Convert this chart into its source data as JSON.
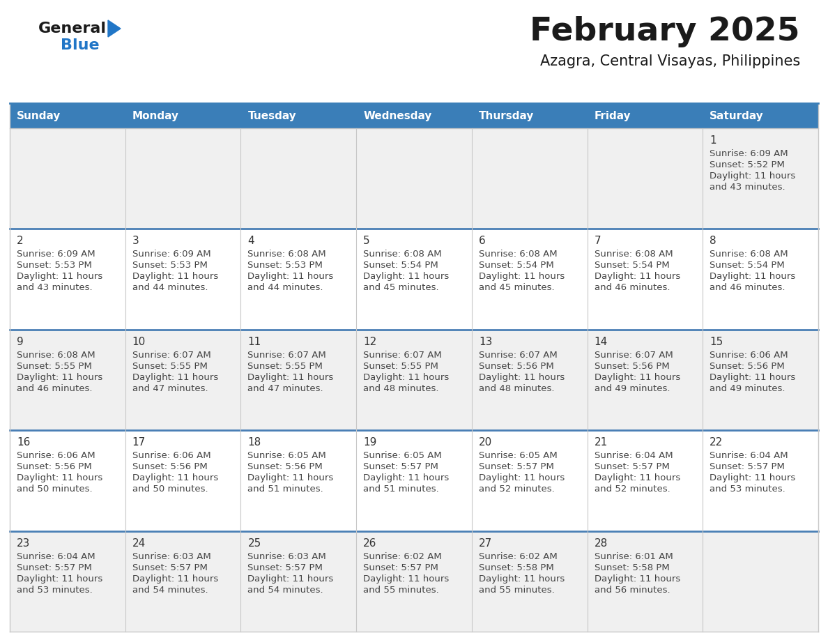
{
  "title": "February 2025",
  "subtitle": "Azagra, Central Visayas, Philippines",
  "days_of_week": [
    "Sunday",
    "Monday",
    "Tuesday",
    "Wednesday",
    "Thursday",
    "Friday",
    "Saturday"
  ],
  "header_bg": "#3a7eb8",
  "header_text": "#ffffff",
  "row_bg_light": "#f0f0f0",
  "row_bg_white": "#ffffff",
  "row_divider_color": "#4a7fb5",
  "col_divider_color": "#c8c8c8",
  "outer_border_color": "#c8c8c8",
  "day_num_color": "#333333",
  "info_text_color": "#444444",
  "title_color": "#1a1a1a",
  "subtitle_color": "#1a1a1a",
  "logo_general_color": "#1a1a1a",
  "logo_blue_color": "#2176c7",
  "calendar_data": [
    [
      null,
      null,
      null,
      null,
      null,
      null,
      {
        "day": 1,
        "sunrise": "6:09 AM",
        "sunset": "5:52 PM",
        "daylight": "11 hours and 43 minutes."
      }
    ],
    [
      {
        "day": 2,
        "sunrise": "6:09 AM",
        "sunset": "5:53 PM",
        "daylight": "11 hours and 43 minutes."
      },
      {
        "day": 3,
        "sunrise": "6:09 AM",
        "sunset": "5:53 PM",
        "daylight": "11 hours and 44 minutes."
      },
      {
        "day": 4,
        "sunrise": "6:08 AM",
        "sunset": "5:53 PM",
        "daylight": "11 hours and 44 minutes."
      },
      {
        "day": 5,
        "sunrise": "6:08 AM",
        "sunset": "5:54 PM",
        "daylight": "11 hours and 45 minutes."
      },
      {
        "day": 6,
        "sunrise": "6:08 AM",
        "sunset": "5:54 PM",
        "daylight": "11 hours and 45 minutes."
      },
      {
        "day": 7,
        "sunrise": "6:08 AM",
        "sunset": "5:54 PM",
        "daylight": "11 hours and 46 minutes."
      },
      {
        "day": 8,
        "sunrise": "6:08 AM",
        "sunset": "5:54 PM",
        "daylight": "11 hours and 46 minutes."
      }
    ],
    [
      {
        "day": 9,
        "sunrise": "6:08 AM",
        "sunset": "5:55 PM",
        "daylight": "11 hours and 46 minutes."
      },
      {
        "day": 10,
        "sunrise": "6:07 AM",
        "sunset": "5:55 PM",
        "daylight": "11 hours and 47 minutes."
      },
      {
        "day": 11,
        "sunrise": "6:07 AM",
        "sunset": "5:55 PM",
        "daylight": "11 hours and 47 minutes."
      },
      {
        "day": 12,
        "sunrise": "6:07 AM",
        "sunset": "5:55 PM",
        "daylight": "11 hours and 48 minutes."
      },
      {
        "day": 13,
        "sunrise": "6:07 AM",
        "sunset": "5:56 PM",
        "daylight": "11 hours and 48 minutes."
      },
      {
        "day": 14,
        "sunrise": "6:07 AM",
        "sunset": "5:56 PM",
        "daylight": "11 hours and 49 minutes."
      },
      {
        "day": 15,
        "sunrise": "6:06 AM",
        "sunset": "5:56 PM",
        "daylight": "11 hours and 49 minutes."
      }
    ],
    [
      {
        "day": 16,
        "sunrise": "6:06 AM",
        "sunset": "5:56 PM",
        "daylight": "11 hours and 50 minutes."
      },
      {
        "day": 17,
        "sunrise": "6:06 AM",
        "sunset": "5:56 PM",
        "daylight": "11 hours and 50 minutes."
      },
      {
        "day": 18,
        "sunrise": "6:05 AM",
        "sunset": "5:56 PM",
        "daylight": "11 hours and 51 minutes."
      },
      {
        "day": 19,
        "sunrise": "6:05 AM",
        "sunset": "5:57 PM",
        "daylight": "11 hours and 51 minutes."
      },
      {
        "day": 20,
        "sunrise": "6:05 AM",
        "sunset": "5:57 PM",
        "daylight": "11 hours and 52 minutes."
      },
      {
        "day": 21,
        "sunrise": "6:04 AM",
        "sunset": "5:57 PM",
        "daylight": "11 hours and 52 minutes."
      },
      {
        "day": 22,
        "sunrise": "6:04 AM",
        "sunset": "5:57 PM",
        "daylight": "11 hours and 53 minutes."
      }
    ],
    [
      {
        "day": 23,
        "sunrise": "6:04 AM",
        "sunset": "5:57 PM",
        "daylight": "11 hours and 53 minutes."
      },
      {
        "day": 24,
        "sunrise": "6:03 AM",
        "sunset": "5:57 PM",
        "daylight": "11 hours and 54 minutes."
      },
      {
        "day": 25,
        "sunrise": "6:03 AM",
        "sunset": "5:57 PM",
        "daylight": "11 hours and 54 minutes."
      },
      {
        "day": 26,
        "sunrise": "6:02 AM",
        "sunset": "5:57 PM",
        "daylight": "11 hours and 55 minutes."
      },
      {
        "day": 27,
        "sunrise": "6:02 AM",
        "sunset": "5:58 PM",
        "daylight": "11 hours and 55 minutes."
      },
      {
        "day": 28,
        "sunrise": "6:01 AM",
        "sunset": "5:58 PM",
        "daylight": "11 hours and 56 minutes."
      },
      null
    ]
  ]
}
